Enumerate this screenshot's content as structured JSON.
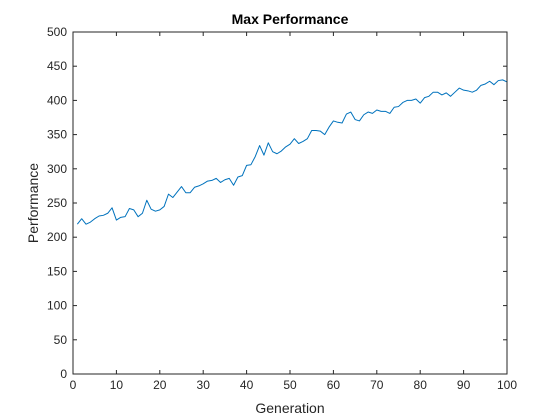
{
  "chart_data": {
    "type": "line",
    "title": "Max Performance",
    "xlabel": "Generation",
    "ylabel": "Performance",
    "xlim": [
      0,
      100
    ],
    "ylim": [
      0,
      500
    ],
    "xticks": [
      0,
      10,
      20,
      30,
      40,
      50,
      60,
      70,
      80,
      90,
      100
    ],
    "yticks": [
      0,
      50,
      100,
      150,
      200,
      250,
      300,
      350,
      400,
      450,
      500
    ],
    "grid": false,
    "line_color": "#0072BD",
    "series": [
      {
        "x": [
          1,
          2,
          3,
          4,
          5,
          6,
          7,
          8,
          9,
          10,
          11,
          12,
          13,
          14,
          15,
          16,
          17,
          18,
          19,
          20,
          21,
          22,
          23,
          24,
          25,
          26,
          27,
          28,
          29,
          30,
          31,
          32,
          33,
          34,
          35,
          36,
          37,
          38,
          39,
          40,
          41,
          42,
          43,
          44,
          45,
          46,
          47,
          48,
          49,
          50,
          51,
          52,
          53,
          54,
          55,
          56,
          57,
          58,
          59,
          60,
          61,
          62,
          63,
          64,
          65,
          66,
          67,
          68,
          69,
          70,
          71,
          72,
          73,
          74,
          75,
          76,
          77,
          78,
          79,
          80,
          81,
          82,
          83,
          84,
          85,
          86,
          87,
          88,
          89,
          90,
          91,
          92,
          93,
          94,
          95,
          96,
          97,
          98,
          99,
          100
        ],
        "values": [
          219,
          227,
          219,
          222,
          227,
          231,
          232,
          235,
          243,
          225,
          229,
          230,
          242,
          240,
          230,
          235,
          254,
          241,
          238,
          240,
          245,
          263,
          258,
          266,
          274,
          265,
          265,
          273,
          275,
          278,
          282,
          283,
          286,
          280,
          284,
          286,
          276,
          288,
          290,
          305,
          306,
          318,
          334,
          320,
          338,
          325,
          322,
          326,
          332,
          336,
          344,
          337,
          340,
          344,
          356,
          356,
          355,
          350,
          361,
          370,
          368,
          367,
          380,
          383,
          372,
          370,
          379,
          383,
          381,
          386,
          384,
          384,
          381,
          390,
          391,
          397,
          400,
          400,
          402,
          396,
          404,
          406,
          412,
          412,
          408,
          411,
          406,
          412,
          418,
          415,
          414,
          412,
          415,
          422,
          424,
          428,
          423,
          429,
          430,
          427
        ]
      }
    ]
  }
}
